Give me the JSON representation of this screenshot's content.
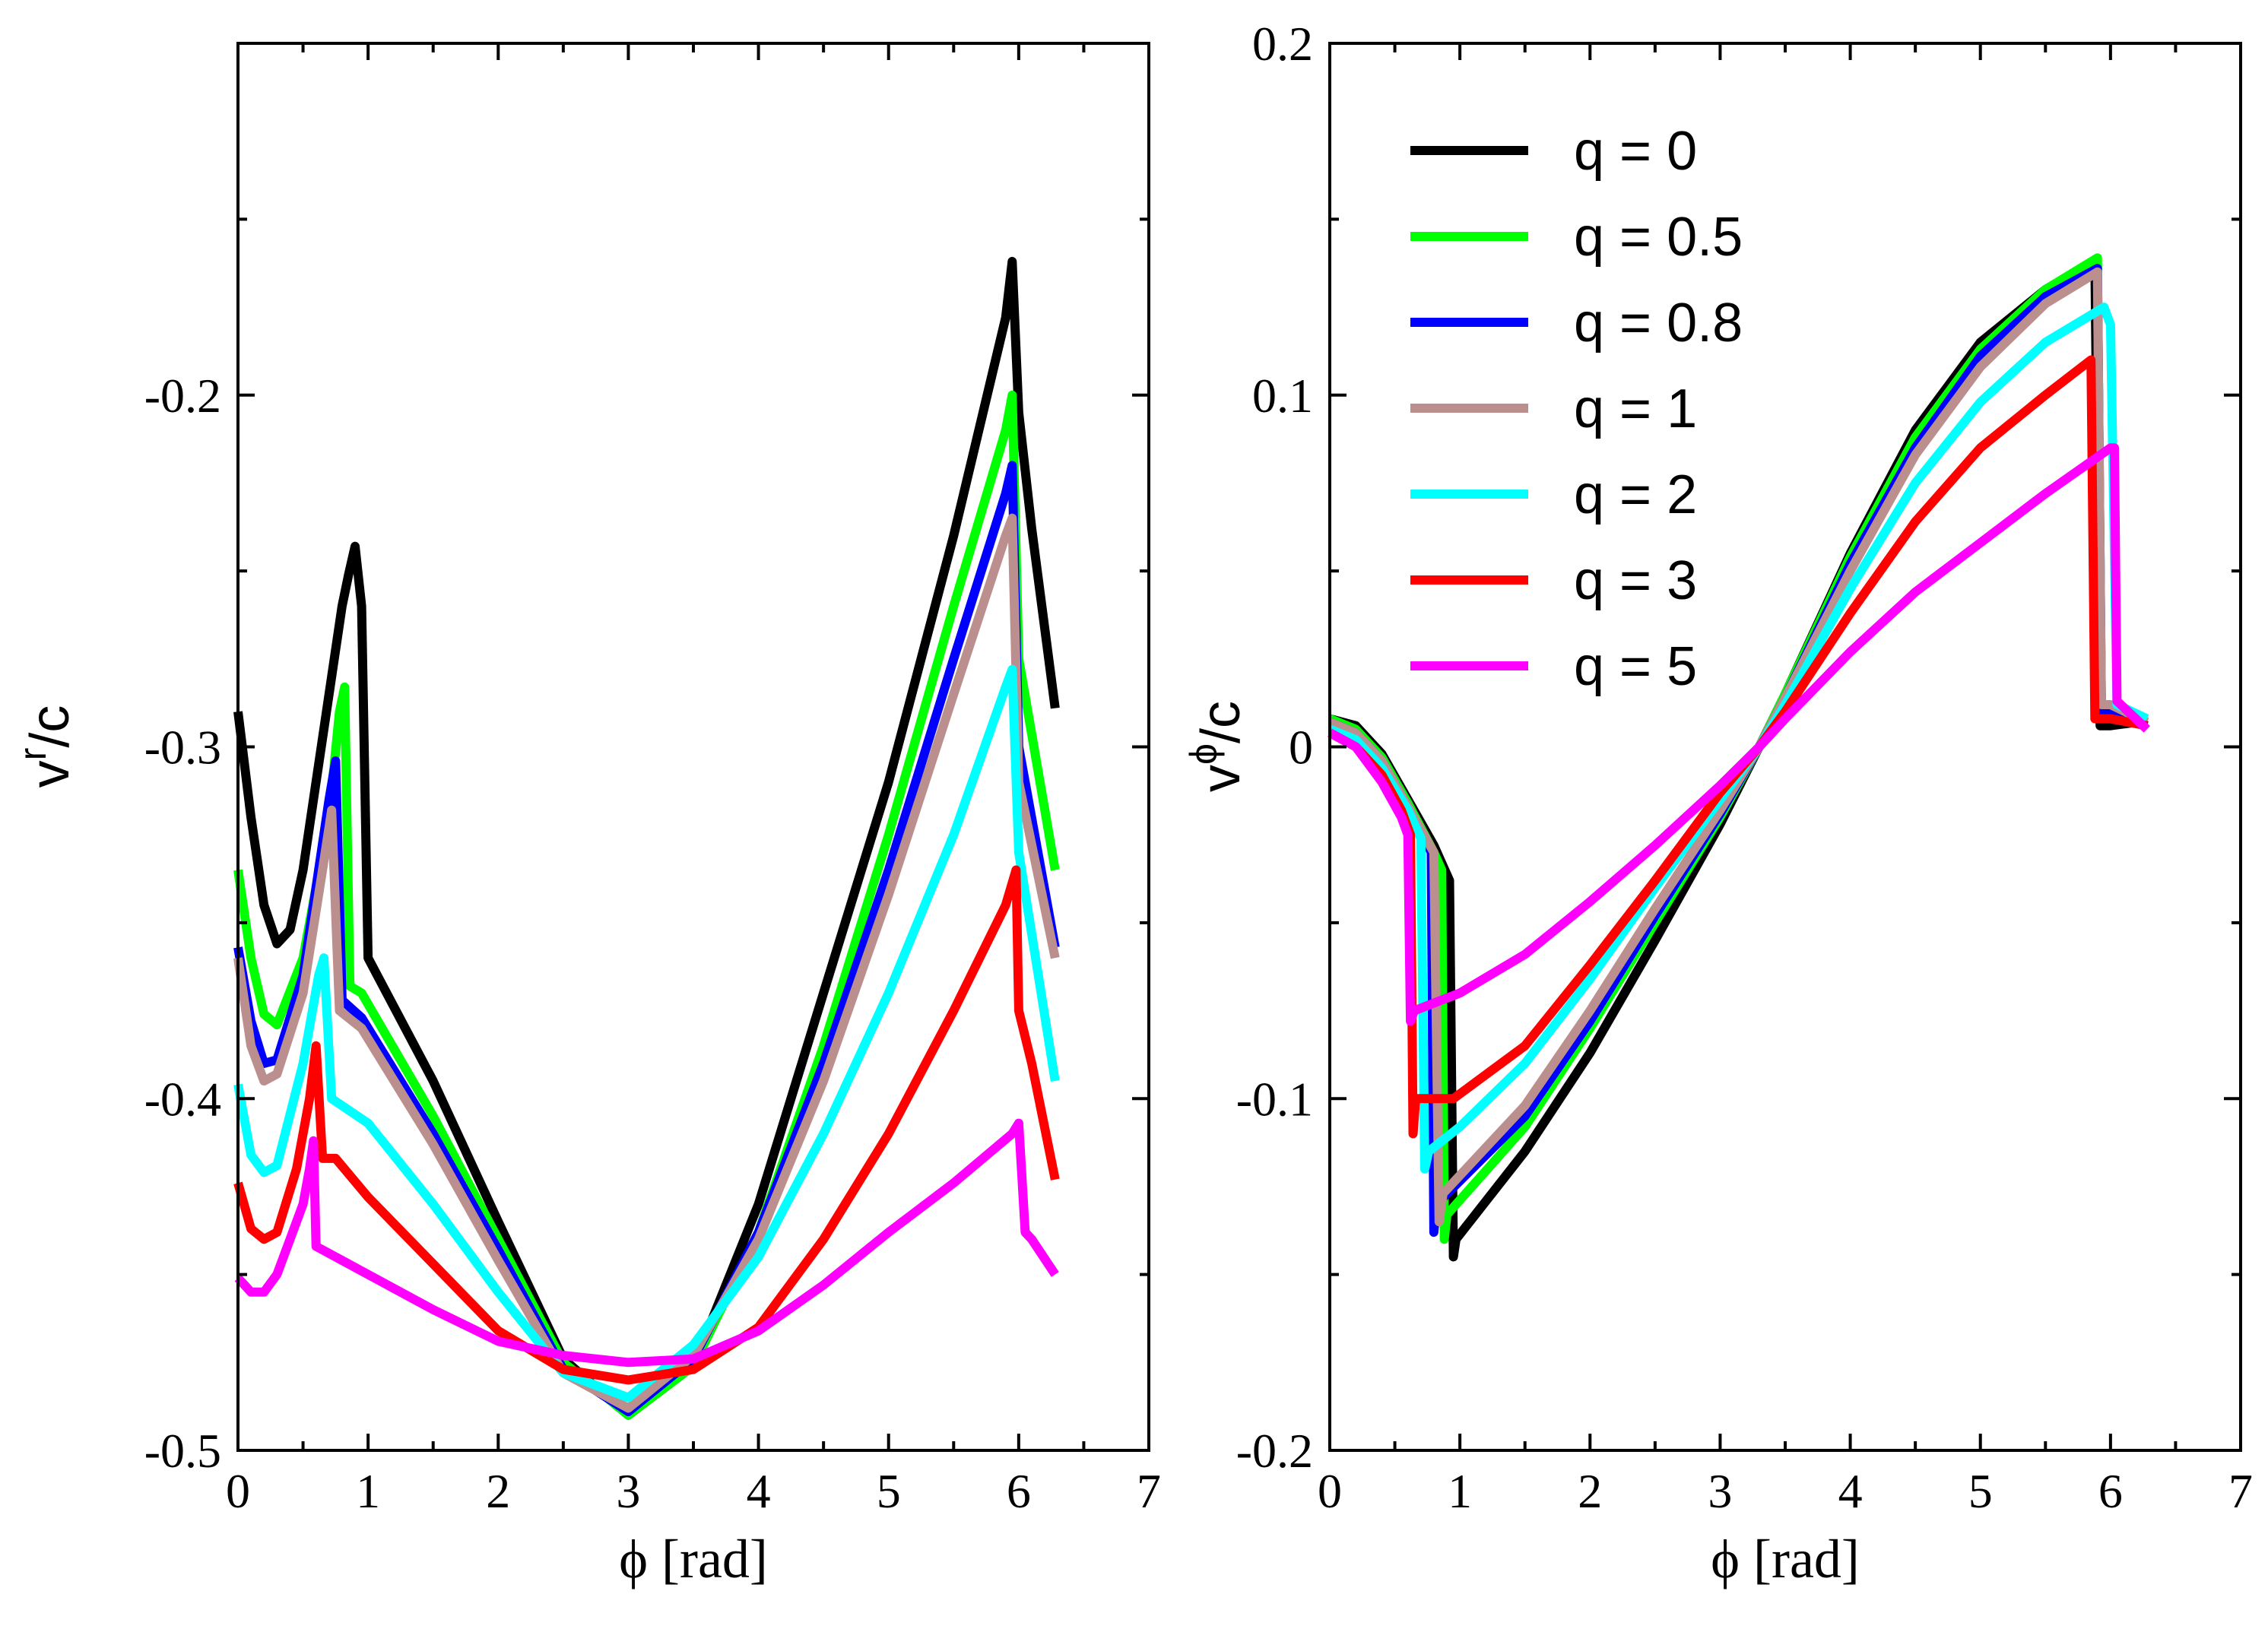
{
  "chart_data": [
    {
      "type": "line",
      "panel": "left",
      "title": "",
      "xlabel": "ϕ [rad]",
      "ylabel": {
        "base": "v",
        "sup": "r",
        "tail": "/c"
      },
      "xlim": [
        0,
        7
      ],
      "ylim": [
        -0.5,
        -0.1
      ],
      "xticks": [
        0,
        1,
        2,
        3,
        4,
        5,
        6,
        7
      ],
      "xtick_labels": [
        "0",
        "1",
        "2",
        "3",
        "4",
        "5",
        "6",
        "7"
      ],
      "yticks": [
        -0.5,
        -0.4,
        -0.3,
        -0.2
      ],
      "ytick_labels": [
        "-0.5",
        "-0.4",
        "-0.3",
        "-0.2"
      ],
      "grid": false,
      "series": [
        {
          "name": "q = 0",
          "color": "#000000",
          "x": [
            0,
            0.1,
            0.2,
            0.3,
            0.4,
            0.5,
            0.6,
            0.7,
            0.8,
            0.85,
            0.9,
            0.95,
            1.0,
            1.5,
            2.0,
            2.5,
            3.0,
            3.5,
            4.0,
            4.5,
            5.0,
            5.5,
            5.9,
            5.95,
            6.0,
            6.1,
            6.28
          ],
          "y": [
            -0.29,
            -0.32,
            -0.345,
            -0.356,
            -0.352,
            -0.335,
            -0.31,
            -0.285,
            -0.26,
            -0.251,
            -0.243,
            -0.26,
            -0.36,
            -0.395,
            -0.435,
            -0.474,
            -0.49,
            -0.476,
            -0.43,
            -0.37,
            -0.31,
            -0.24,
            -0.178,
            -0.162,
            -0.205,
            -0.238,
            -0.289
          ]
        },
        {
          "name": "q = 0.5",
          "color": "#00ff00",
          "x": [
            0,
            0.1,
            0.2,
            0.3,
            0.5,
            0.7,
            0.78,
            0.82,
            0.86,
            0.95,
            1.5,
            2.0,
            2.5,
            3.0,
            3.5,
            4.0,
            4.5,
            5.0,
            5.5,
            5.9,
            5.95,
            6.0,
            6.28
          ],
          "y": [
            -0.335,
            -0.36,
            -0.376,
            -0.379,
            -0.36,
            -0.32,
            -0.29,
            -0.283,
            -0.368,
            -0.37,
            -0.405,
            -0.44,
            -0.475,
            -0.49,
            -0.476,
            -0.438,
            -0.385,
            -0.325,
            -0.26,
            -0.21,
            -0.2,
            -0.275,
            -0.335
          ]
        },
        {
          "name": "q = 0.8",
          "color": "#0000ff",
          "x": [
            0,
            0.1,
            0.2,
            0.3,
            0.5,
            0.7,
            0.75,
            0.8,
            0.95,
            1.5,
            2.0,
            2.5,
            3.0,
            3.5,
            4.0,
            4.5,
            5.0,
            5.5,
            5.9,
            5.95,
            6.0,
            6.28
          ],
          "y": [
            -0.357,
            -0.378,
            -0.39,
            -0.389,
            -0.365,
            -0.315,
            -0.304,
            -0.372,
            -0.377,
            -0.41,
            -0.443,
            -0.477,
            -0.489,
            -0.474,
            -0.438,
            -0.39,
            -0.335,
            -0.275,
            -0.228,
            -0.22,
            -0.3,
            -0.357
          ]
        },
        {
          "name": "q = 1",
          "color": "#bc8f8f",
          "x": [
            0,
            0.1,
            0.2,
            0.3,
            0.5,
            0.65,
            0.72,
            0.78,
            0.95,
            1.5,
            2.0,
            2.5,
            3.0,
            3.5,
            4.0,
            4.5,
            5.0,
            5.5,
            5.9,
            5.95,
            6.0,
            6.28
          ],
          "y": [
            -0.36,
            -0.385,
            -0.395,
            -0.393,
            -0.37,
            -0.335,
            -0.318,
            -0.375,
            -0.38,
            -0.413,
            -0.446,
            -0.478,
            -0.488,
            -0.473,
            -0.44,
            -0.395,
            -0.342,
            -0.285,
            -0.24,
            -0.235,
            -0.31,
            -0.36
          ]
        },
        {
          "name": "q = 2",
          "color": "#00ffff",
          "x": [
            0,
            0.1,
            0.2,
            0.3,
            0.5,
            0.62,
            0.66,
            0.72,
            1.0,
            1.5,
            2.0,
            2.5,
            3.0,
            3.5,
            4.0,
            4.5,
            5.0,
            5.5,
            5.9,
            5.95,
            6.0,
            6.28
          ],
          "y": [
            -0.396,
            -0.416,
            -0.421,
            -0.419,
            -0.39,
            -0.365,
            -0.36,
            -0.4,
            -0.407,
            -0.43,
            -0.455,
            -0.478,
            -0.485,
            -0.47,
            -0.445,
            -0.41,
            -0.37,
            -0.325,
            -0.283,
            -0.278,
            -0.33,
            -0.395
          ]
        },
        {
          "name": "q = 3",
          "color": "#ff0000",
          "x": [
            0,
            0.1,
            0.2,
            0.3,
            0.45,
            0.55,
            0.6,
            0.65,
            0.75,
            1.0,
            1.5,
            2.0,
            2.5,
            3.0,
            3.5,
            4.0,
            4.5,
            5.0,
            5.5,
            5.9,
            5.98,
            6.0,
            6.1,
            6.28
          ],
          "y": [
            -0.424,
            -0.437,
            -0.44,
            -0.438,
            -0.42,
            -0.4,
            -0.385,
            -0.417,
            -0.417,
            -0.428,
            -0.447,
            -0.466,
            -0.477,
            -0.48,
            -0.477,
            -0.465,
            -0.44,
            -0.41,
            -0.375,
            -0.345,
            -0.335,
            -0.375,
            -0.39,
            -0.423
          ]
        },
        {
          "name": "q = 5",
          "color": "#ff00ff",
          "x": [
            0,
            0.05,
            0.1,
            0.2,
            0.3,
            0.4,
            0.5,
            0.55,
            0.58,
            0.6,
            1.0,
            1.5,
            2.0,
            2.5,
            3.0,
            3.5,
            4.0,
            4.5,
            5.0,
            5.5,
            5.95,
            6.0,
            6.05,
            6.1,
            6.28
          ],
          "y": [
            -0.451,
            -0.453,
            -0.455,
            -0.455,
            -0.45,
            -0.44,
            -0.43,
            -0.42,
            -0.412,
            -0.442,
            -0.45,
            -0.46,
            -0.469,
            -0.473,
            -0.475,
            -0.474,
            -0.466,
            -0.453,
            -0.438,
            -0.424,
            -0.41,
            -0.407,
            -0.438,
            -0.44,
            -0.45
          ]
        }
      ]
    },
    {
      "type": "line",
      "panel": "right",
      "title": "",
      "xlabel": "ϕ [rad]",
      "ylabel": {
        "base": "v",
        "sup": "ϕ",
        "tail": "/c"
      },
      "xlim": [
        0,
        7
      ],
      "ylim": [
        -0.2,
        0.2
      ],
      "xticks": [
        0,
        1,
        2,
        3,
        4,
        5,
        6,
        7
      ],
      "xtick_labels": [
        "0",
        "1",
        "2",
        "3",
        "4",
        "5",
        "6",
        "7"
      ],
      "yticks": [
        -0.2,
        -0.1,
        0,
        0.1,
        0.2
      ],
      "ytick_labels": [
        "-0.2",
        "-0.1",
        "0",
        "0.1",
        "0.2"
      ],
      "grid": false,
      "legend_position": "top-left",
      "series": [
        {
          "name": "q = 0",
          "color": "#000000",
          "x": [
            0,
            0.2,
            0.4,
            0.6,
            0.8,
            0.92,
            0.95,
            0.97,
            1.5,
            2.0,
            2.5,
            3.0,
            3.3,
            3.5,
            4.0,
            4.5,
            5.0,
            5.5,
            5.88,
            5.92,
            6.0,
            6.2,
            6.28
          ],
          "y": [
            0.008,
            0.006,
            -0.002,
            -0.015,
            -0.028,
            -0.038,
            -0.145,
            -0.14,
            -0.115,
            -0.087,
            -0.055,
            -0.022,
            0.0,
            0.015,
            0.055,
            0.09,
            0.115,
            0.13,
            0.138,
            0.006,
            0.006,
            0.007,
            0.006
          ]
        },
        {
          "name": "q = 0.5",
          "color": "#00ff00",
          "x": [
            0,
            0.2,
            0.4,
            0.6,
            0.8,
            0.86,
            0.88,
            0.9,
            1.5,
            2.0,
            2.5,
            3.0,
            3.3,
            3.5,
            4.0,
            4.5,
            5.0,
            5.5,
            5.9,
            5.93,
            6.0,
            6.28
          ],
          "y": [
            0.008,
            0.005,
            -0.003,
            -0.016,
            -0.03,
            -0.035,
            -0.14,
            -0.133,
            -0.108,
            -0.08,
            -0.05,
            -0.02,
            0.0,
            0.015,
            0.054,
            0.088,
            0.113,
            0.13,
            0.139,
            0.008,
            0.008,
            0.007
          ]
        },
        {
          "name": "q = 0.8",
          "color": "#0000ff",
          "x": [
            0,
            0.2,
            0.4,
            0.6,
            0.78,
            0.8,
            0.82,
            1.5,
            2.0,
            2.5,
            3.0,
            3.3,
            3.5,
            4.0,
            4.5,
            5.0,
            5.5,
            5.9,
            5.93,
            6.0,
            6.28
          ],
          "y": [
            0.007,
            0.004,
            -0.004,
            -0.017,
            -0.03,
            -0.138,
            -0.13,
            -0.105,
            -0.078,
            -0.048,
            -0.019,
            0.0,
            0.014,
            0.052,
            0.085,
            0.111,
            0.128,
            0.136,
            0.01,
            0.01,
            0.007
          ]
        },
        {
          "name": "q = 1",
          "color": "#bc8f8f",
          "x": [
            0,
            0.2,
            0.4,
            0.6,
            0.8,
            0.84,
            0.87,
            1.5,
            2.0,
            2.5,
            3.0,
            3.3,
            3.5,
            4.0,
            4.5,
            5.0,
            5.5,
            5.9,
            5.93,
            6.0,
            6.28
          ],
          "y": [
            0.007,
            0.004,
            -0.004,
            -0.017,
            -0.03,
            -0.135,
            -0.127,
            -0.102,
            -0.075,
            -0.046,
            -0.018,
            0.0,
            0.014,
            0.05,
            0.083,
            0.108,
            0.126,
            0.135,
            0.012,
            0.012,
            0.007
          ]
        },
        {
          "name": "q = 2",
          "color": "#00ffff",
          "x": [
            0,
            0.2,
            0.4,
            0.6,
            0.7,
            0.73,
            0.76,
            1.0,
            1.5,
            2.0,
            2.5,
            3.0,
            3.3,
            3.5,
            4.0,
            4.5,
            5.0,
            5.5,
            5.95,
            6.0,
            6.05,
            6.28
          ],
          "y": [
            0.005,
            0.002,
            -0.006,
            -0.018,
            -0.026,
            -0.12,
            -0.115,
            -0.108,
            -0.09,
            -0.066,
            -0.04,
            -0.015,
            0.0,
            0.012,
            0.045,
            0.075,
            0.098,
            0.115,
            0.125,
            0.12,
            0.012,
            0.008
          ]
        },
        {
          "name": "q = 3",
          "color": "#ff0000",
          "x": [
            0,
            0.2,
            0.4,
            0.55,
            0.62,
            0.64,
            0.66,
            0.95,
            1.5,
            2.0,
            2.5,
            3.0,
            3.3,
            3.5,
            4.0,
            4.5,
            5.0,
            5.5,
            5.85,
            5.88,
            6.0,
            6.28
          ],
          "y": [
            0.004,
            0.0,
            -0.008,
            -0.018,
            -0.025,
            -0.11,
            -0.1,
            -0.1,
            -0.085,
            -0.062,
            -0.038,
            -0.013,
            0.0,
            0.01,
            0.038,
            0.064,
            0.085,
            0.1,
            0.11,
            0.008,
            0.008,
            0.006
          ]
        },
        {
          "name": "q = 5",
          "color": "#ff00ff",
          "x": [
            0,
            0.2,
            0.4,
            0.55,
            0.6,
            0.62,
            0.65,
            1.0,
            1.5,
            2.0,
            2.5,
            3.0,
            3.3,
            3.5,
            4.0,
            4.5,
            5.0,
            5.5,
            6.0,
            6.03,
            6.05,
            6.28
          ],
          "y": [
            0.004,
            0.0,
            -0.01,
            -0.02,
            -0.025,
            -0.078,
            -0.075,
            -0.07,
            -0.059,
            -0.044,
            -0.028,
            -0.011,
            0.0,
            0.008,
            0.027,
            0.044,
            0.058,
            0.072,
            0.085,
            0.085,
            0.013,
            0.005
          ]
        }
      ]
    }
  ],
  "legend": {
    "items": [
      {
        "label": "q = 0",
        "color": "#000000"
      },
      {
        "label": "q = 0.5",
        "color": "#00ff00"
      },
      {
        "label": "q = 0.8",
        "color": "#0000ff"
      },
      {
        "label": "q = 1",
        "color": "#bc8f8f"
      },
      {
        "label": "q = 2",
        "color": "#00ffff"
      },
      {
        "label": "q = 3",
        "color": "#ff0000"
      },
      {
        "label": "q = 5",
        "color": "#ff00ff"
      }
    ]
  }
}
